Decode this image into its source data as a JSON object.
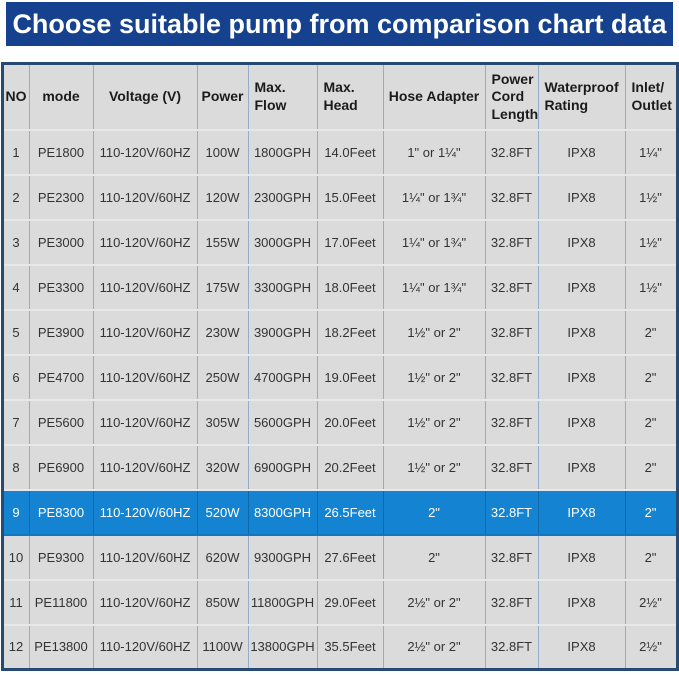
{
  "banner": {
    "title": "Choose suitable pump from comparison chart data",
    "bg_color": "#15418F",
    "text_color": "#FFFFFF"
  },
  "chart_data": {
    "type": "table",
    "title": "Choose suitable pump from comparison chart data",
    "columns": [
      "NO",
      "mode",
      "Voltage (V)",
      "Power",
      "Max.\nFlow",
      "Max.\nHead",
      "Hose Adapter",
      "Power\nCord\nLength",
      "Waterproof\nRating",
      "Inlet/\nOutlet"
    ],
    "rows": [
      [
        "1",
        "PE1800",
        "110-120V/60HZ",
        "100W",
        "1800GPH",
        "14.0Feet",
        "1\" or 1¼\"",
        "32.8FT",
        "IPX8",
        "1¼\""
      ],
      [
        "2",
        "PE2300",
        "110-120V/60HZ",
        "120W",
        "2300GPH",
        "15.0Feet",
        "1¼\" or 1¾\"",
        "32.8FT",
        "IPX8",
        "1½\""
      ],
      [
        "3",
        "PE3000",
        "110-120V/60HZ",
        "155W",
        "3000GPH",
        "17.0Feet",
        "1¼\" or 1¾\"",
        "32.8FT",
        "IPX8",
        "1½\""
      ],
      [
        "4",
        "PE3300",
        "110-120V/60HZ",
        "175W",
        "3300GPH",
        "18.0Feet",
        "1¼\" or 1¾\"",
        "32.8FT",
        "IPX8",
        "1½\""
      ],
      [
        "5",
        "PE3900",
        "110-120V/60HZ",
        "230W",
        "3900GPH",
        "18.2Feet",
        "1½\" or 2\"",
        "32.8FT",
        "IPX8",
        "2\""
      ],
      [
        "6",
        "PE4700",
        "110-120V/60HZ",
        "250W",
        "4700GPH",
        "19.0Feet",
        "1½\" or 2\"",
        "32.8FT",
        "IPX8",
        "2\""
      ],
      [
        "7",
        "PE5600",
        "110-120V/60HZ",
        "305W",
        "5600GPH",
        "20.0Feet",
        "1½\" or 2\"",
        "32.8FT",
        "IPX8",
        "2\""
      ],
      [
        "8",
        "PE6900",
        "110-120V/60HZ",
        "320W",
        "6900GPH",
        "20.2Feet",
        "1½\" or 2\"",
        "32.8FT",
        "IPX8",
        "2\""
      ],
      [
        "9",
        "PE8300",
        "110-120V/60HZ",
        "520W",
        "8300GPH",
        "26.5Feet",
        "2\"",
        "32.8FT",
        "IPX8",
        "2\""
      ],
      [
        "10",
        "PE9300",
        "110-120V/60HZ",
        "620W",
        "9300GPH",
        "27.6Feet",
        "2\"",
        "32.8FT",
        "IPX8",
        "2\""
      ],
      [
        "11",
        "PE11800",
        "110-120V/60HZ",
        "850W",
        "11800GPH",
        "29.0Feet",
        "2½\" or 2\"",
        "32.8FT",
        "IPX8",
        "2½\""
      ],
      [
        "12",
        "PE13800",
        "110-120V/60HZ",
        "1100W",
        "13800GPH",
        "35.5Feet",
        "2½\" or 2\"",
        "32.8FT",
        "IPX8",
        "2½\""
      ]
    ],
    "highlighted_row_no": "9",
    "highlighted_model": "PE8300",
    "highlight_color": "#1484D2",
    "cell_bg_color": "#DBDBDB",
    "grid_line_color": "#93ADCB",
    "outer_border_color": "#274A73"
  }
}
